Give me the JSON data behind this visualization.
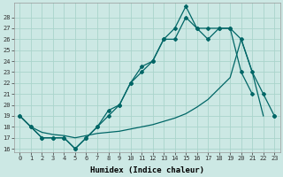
{
  "xlabel": "Humidex (Indice chaleur)",
  "bg_color": "#cce8e4",
  "grid_color": "#aad4cc",
  "line_color": "#006666",
  "line1_x": [
    0,
    1,
    2,
    3,
    4,
    5,
    6,
    7,
    8,
    9,
    10,
    11,
    12,
    13,
    14,
    15,
    16,
    17,
    18,
    19,
    20,
    21,
    22,
    23
  ],
  "line1_y": [
    19,
    18,
    17,
    17,
    17,
    16,
    17,
    18,
    19.5,
    20,
    22,
    23.5,
    24,
    26,
    27,
    29,
    27,
    27,
    27,
    27,
    23,
    21,
    null,
    19
  ],
  "line2_x": [
    0,
    1,
    2,
    3,
    4,
    5,
    6,
    7,
    8,
    9,
    10,
    11,
    12,
    13,
    14,
    15,
    16,
    17,
    18,
    19,
    20,
    21,
    22,
    23
  ],
  "line2_y": [
    19,
    18,
    17,
    17,
    17,
    16,
    17,
    18,
    19,
    20,
    22,
    23,
    24,
    26,
    26,
    28,
    27,
    26,
    27,
    27,
    26,
    23,
    21,
    19
  ],
  "line3_x": [
    0,
    1,
    2,
    3,
    4,
    5,
    6,
    7,
    8,
    9,
    10,
    11,
    12,
    13,
    14,
    15,
    16,
    17,
    18,
    19,
    20,
    21,
    22,
    23
  ],
  "line3_y": [
    19,
    18,
    17.5,
    17.3,
    17.2,
    17,
    17.2,
    17.4,
    17.5,
    17.6,
    17.8,
    18,
    18.2,
    18.5,
    18.8,
    19.2,
    19.8,
    20.5,
    21.5,
    22.5,
    26,
    23,
    19,
    null
  ],
  "xlim": [
    -0.5,
    23.5
  ],
  "ylim_min": 15.7,
  "ylim_max": 29.3,
  "yticks": [
    16,
    17,
    18,
    19,
    20,
    21,
    22,
    23,
    24,
    25,
    26,
    27,
    28
  ],
  "xticks": [
    0,
    1,
    2,
    3,
    4,
    5,
    6,
    7,
    8,
    9,
    10,
    11,
    12,
    13,
    14,
    15,
    16,
    17,
    18,
    19,
    20,
    21,
    22,
    23
  ]
}
